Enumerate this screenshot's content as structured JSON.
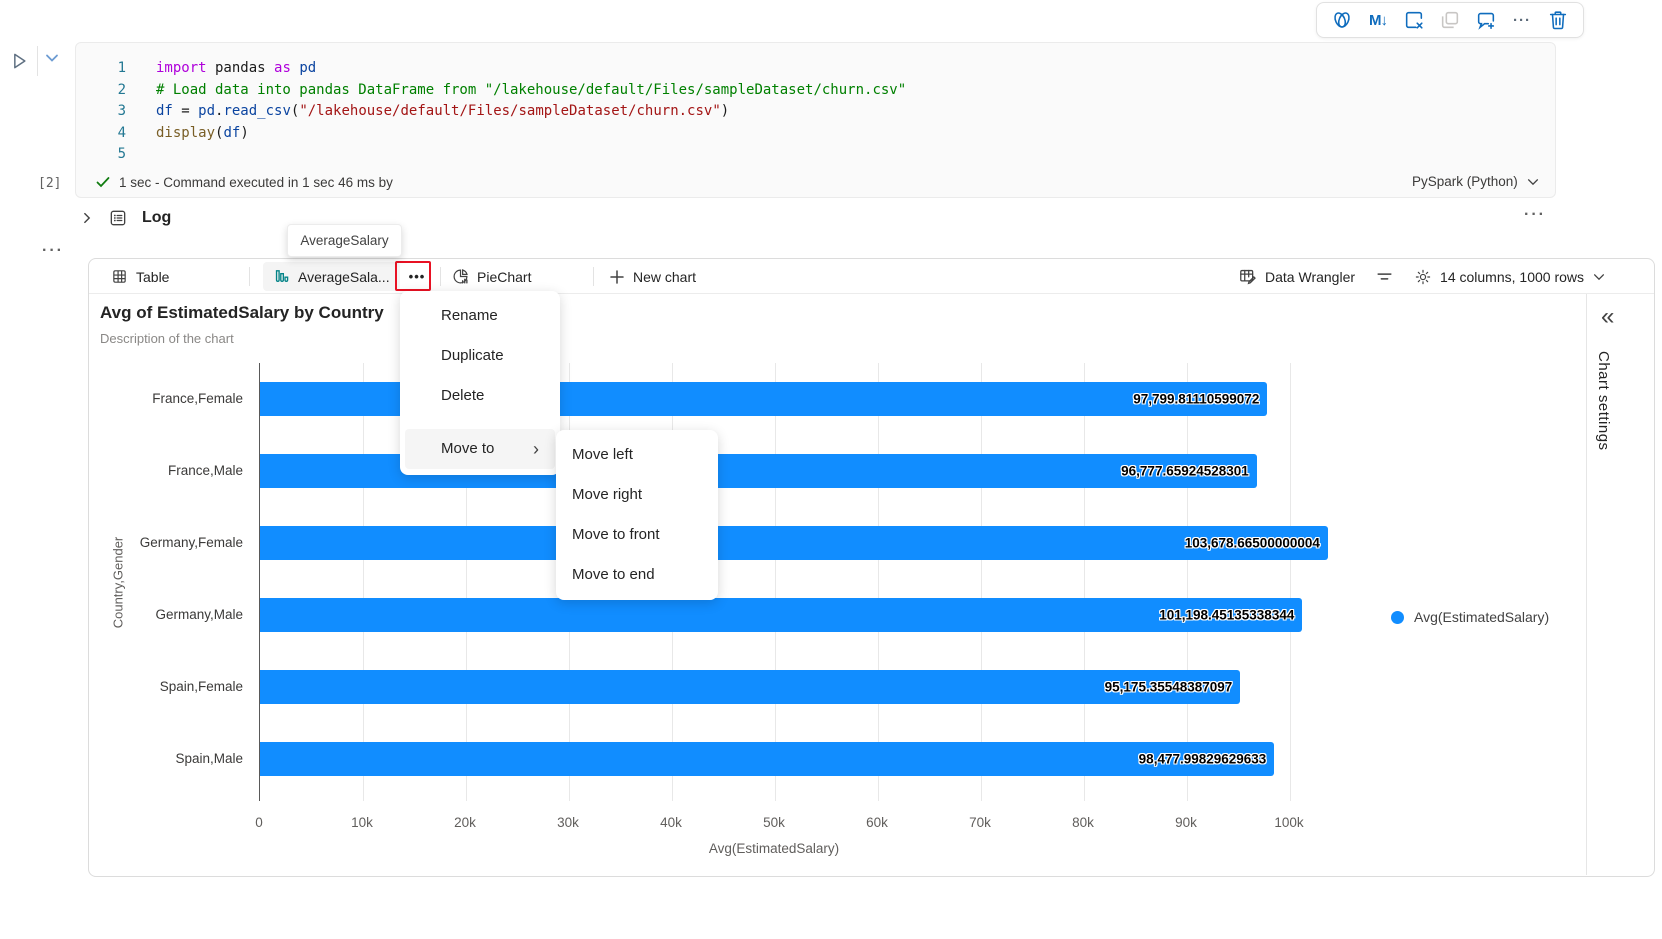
{
  "colors": {
    "accent_blue": "#0f6cbd",
    "bar_blue": "#118DFF",
    "highlight_red": "#e81123",
    "tab_chart_icon_teal": "#038387"
  },
  "icons": [
    "copilot-icon",
    "markdown-convert-icon",
    "clear-output-icon",
    "duplicate-cell-icon",
    "add-comment-icon",
    "more-icon",
    "delete-icon",
    "run-icon",
    "chevron-down-icon",
    "log-icon",
    "table-icon",
    "bar-chart-icon",
    "pie-chart-icon",
    "plus-icon",
    "data-wrangler-icon",
    "filter-icon",
    "gear-icon",
    "collapse-double-chevron-icon",
    "check-icon"
  ],
  "code_cell": {
    "execution_count": "[2]",
    "lines": [
      {
        "n": "1",
        "t": [
          [
            "kw",
            "import"
          ],
          [
            "pl",
            " pandas "
          ],
          [
            "kw",
            "as"
          ],
          [
            "pl",
            " "
          ],
          [
            "var",
            "pd"
          ]
        ]
      },
      {
        "n": "2",
        "t": [
          [
            "com",
            "# Load data into pandas DataFrame from \"/lakehouse/default/Files/sampleDataset/churn.csv\""
          ]
        ]
      },
      {
        "n": "3",
        "t": [
          [
            "var",
            "df"
          ],
          [
            "pl",
            " = "
          ],
          [
            "var",
            "pd"
          ],
          [
            "pl",
            "."
          ],
          [
            "var",
            "read_csv"
          ],
          [
            "pl",
            "("
          ],
          [
            "str",
            "\"/lakehouse/default/Files/sampleDataset/churn.csv\""
          ],
          [
            "pl",
            ")"
          ]
        ]
      },
      {
        "n": "4",
        "t": [
          [
            "fn",
            "display"
          ],
          [
            "pl",
            "("
          ],
          [
            "var",
            "df"
          ],
          [
            "pl",
            ")"
          ]
        ]
      },
      {
        "n": "5",
        "t": []
      }
    ],
    "status_text": "1 sec - Command executed in 1 sec 46 ms by",
    "kernel": "PySpark (Python)"
  },
  "log": {
    "label": "Log",
    "more": "···"
  },
  "cell_more": "···",
  "toolbar_more": "···",
  "markdown_icon_text": "M↓",
  "tooltip": {
    "text": "AverageSalary"
  },
  "tabs": {
    "table": "Table",
    "chart": "AverageSala...",
    "ellipsis": "•••",
    "pie": "PieChart",
    "new_chart": "New chart"
  },
  "tab_right": {
    "data_wrangler": "Data Wrangler",
    "columns_rows": "14 columns, 1000 rows"
  },
  "context_menu": {
    "items": [
      "Rename",
      "Duplicate",
      "Delete"
    ],
    "move_to": "Move to",
    "chevron": "›",
    "submenu": [
      "Move left",
      "Move right",
      "Move to front",
      "Move to end"
    ]
  },
  "chart": {
    "title": "Avg of EstimatedSalary by Country",
    "description": "Description of the chart",
    "legend_label": "Avg(EstimatedSalary)",
    "settings_label": "Chart settings",
    "collapse_glyph": "«"
  },
  "chart_data": {
    "type": "bar",
    "orientation": "horizontal",
    "title": "Avg of EstimatedSalary by Country",
    "categories": [
      "France,Female",
      "France,Male",
      "Germany,Female",
      "Germany,Male",
      "Spain,Female",
      "Spain,Male"
    ],
    "values": [
      97799.81110599072,
      96777.65924528301,
      103678.66500000004,
      101198.45135338344,
      95175.35548387097,
      98477.99829629633
    ],
    "value_labels": [
      "97,799.81110599072",
      "96,777.65924528301",
      "103,678.66500000004",
      "101,198.45135338344",
      "95,175.35548387097",
      "98,477.99829629633"
    ],
    "xlabel": "Avg(EstimatedSalary)",
    "ylabel": "Country,Gender",
    "xlim": [
      0,
      105000
    ],
    "xticks": [
      "0",
      "10k",
      "20k",
      "30k",
      "40k",
      "50k",
      "60k",
      "70k",
      "80k",
      "90k",
      "100k"
    ],
    "legend": [
      "Avg(EstimatedSalary)"
    ],
    "legend_position": "right",
    "grid": true,
    "bar_color": "#118DFF"
  }
}
